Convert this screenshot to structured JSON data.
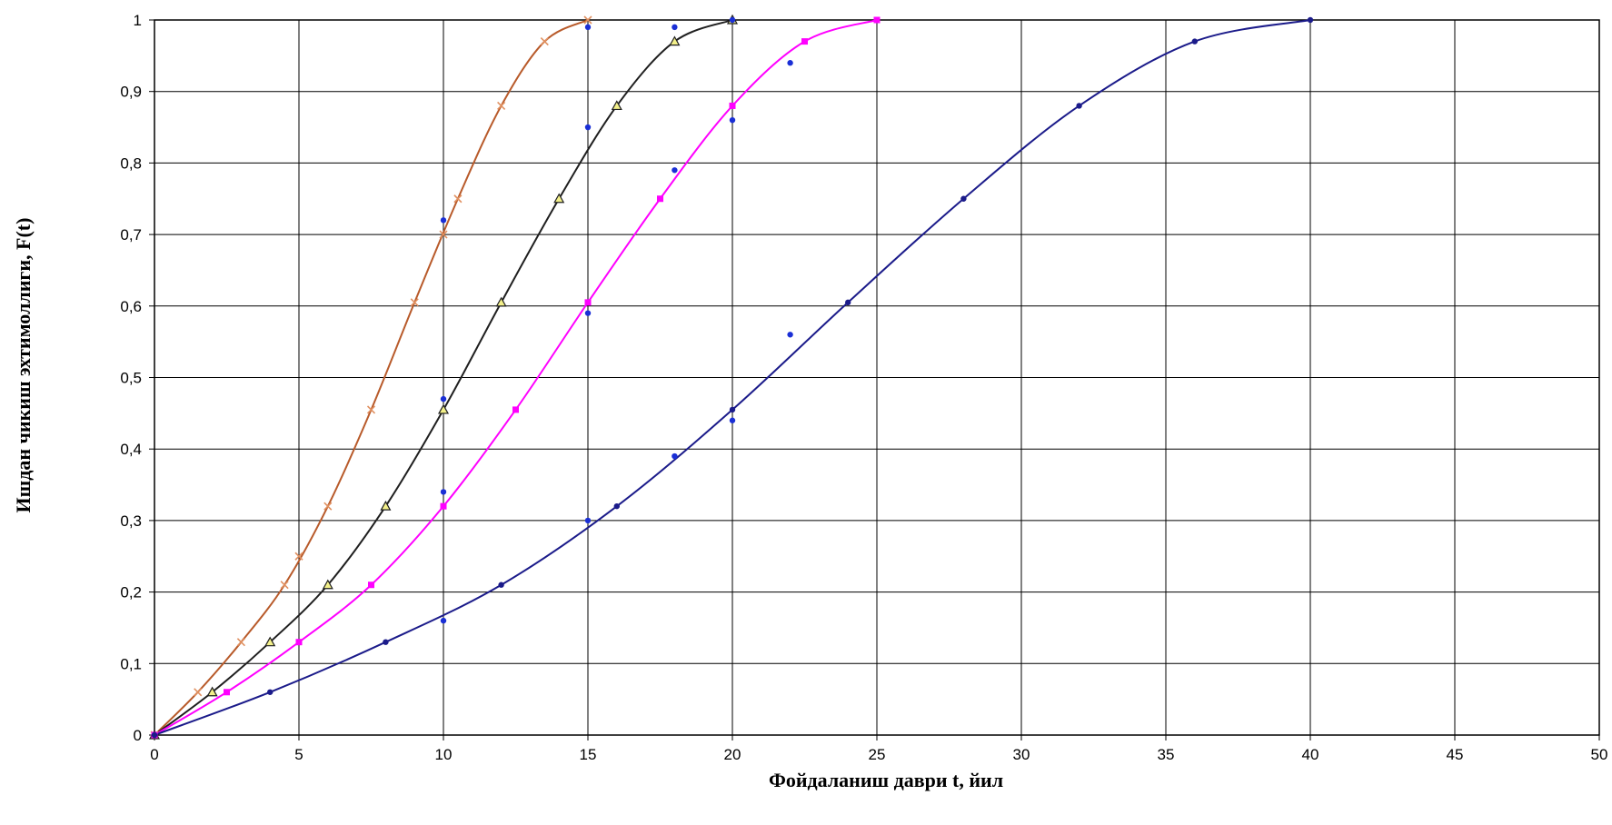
{
  "chart_data": {
    "type": "scatter",
    "xlabel": "Фойдаланиш даври t, йил",
    "ylabel": "Ишдан чикиш эхтимоллиги, F(t)",
    "xlim": [
      0,
      50
    ],
    "ylim": [
      0,
      1
    ],
    "x_ticks": [
      "0",
      "5",
      "10",
      "15",
      "20",
      "25",
      "30",
      "35",
      "40",
      "45",
      "50"
    ],
    "y_ticks": [
      "0",
      "0,1",
      "0,2",
      "0,3",
      "0,4",
      "0,5",
      "0,6",
      "0,7",
      "0,8",
      "0,9",
      "1"
    ],
    "grid": true,
    "legend": "none",
    "series": [
      {
        "color": "#b85a2a",
        "marker": "x",
        "points": [
          [
            0,
            0
          ],
          [
            1.5,
            0.06
          ],
          [
            3,
            0.13
          ],
          [
            4.5,
            0.21
          ],
          [
            5,
            0.25
          ],
          [
            6,
            0.32
          ],
          [
            7.5,
            0.455
          ],
          [
            9,
            0.605
          ],
          [
            10,
            0.7
          ],
          [
            10.5,
            0.75
          ],
          [
            12,
            0.88
          ],
          [
            13.5,
            0.97
          ],
          [
            15,
            1.0
          ]
        ],
        "curve": [
          [
            0,
            0
          ],
          [
            1.5,
            0.06
          ],
          [
            3,
            0.13
          ],
          [
            4.5,
            0.21
          ],
          [
            6,
            0.32
          ],
          [
            7.5,
            0.455
          ],
          [
            9,
            0.605
          ],
          [
            10.5,
            0.75
          ],
          [
            12,
            0.88
          ],
          [
            13.5,
            0.97
          ],
          [
            15,
            1.0
          ]
        ]
      },
      {
        "color": "#1f1f1f",
        "marker": "triangle",
        "points": [
          [
            0,
            0
          ],
          [
            2,
            0.06
          ],
          [
            4,
            0.13
          ],
          [
            6,
            0.21
          ],
          [
            8,
            0.32
          ],
          [
            10,
            0.455
          ],
          [
            12,
            0.605
          ],
          [
            14,
            0.75
          ],
          [
            16,
            0.88
          ],
          [
            18,
            0.97
          ],
          [
            20,
            1.0
          ]
        ],
        "curve": [
          [
            0,
            0
          ],
          [
            2,
            0.06
          ],
          [
            4,
            0.13
          ],
          [
            6,
            0.21
          ],
          [
            8,
            0.32
          ],
          [
            10,
            0.455
          ],
          [
            12,
            0.605
          ],
          [
            14,
            0.75
          ],
          [
            16,
            0.88
          ],
          [
            18,
            0.97
          ],
          [
            20,
            1.0
          ]
        ]
      },
      {
        "color": "#ff00ff",
        "marker": "square",
        "points": [
          [
            0,
            0
          ],
          [
            2.5,
            0.06
          ],
          [
            5,
            0.13
          ],
          [
            7.5,
            0.21
          ],
          [
            10,
            0.32
          ],
          [
            12.5,
            0.455
          ],
          [
            15,
            0.605
          ],
          [
            17.5,
            0.75
          ],
          [
            20,
            0.88
          ],
          [
            22.5,
            0.97
          ],
          [
            25,
            1.0
          ]
        ],
        "curve": [
          [
            0,
            0
          ],
          [
            2.5,
            0.06
          ],
          [
            5,
            0.13
          ],
          [
            7.5,
            0.21
          ],
          [
            10,
            0.32
          ],
          [
            12.5,
            0.455
          ],
          [
            15,
            0.605
          ],
          [
            17.5,
            0.75
          ],
          [
            20,
            0.88
          ],
          [
            22.5,
            0.97
          ],
          [
            25,
            1.0
          ]
        ]
      },
      {
        "color": "#1b1b8a",
        "marker": "dot",
        "points": [
          [
            0,
            0
          ],
          [
            4,
            0.06
          ],
          [
            8,
            0.13
          ],
          [
            12,
            0.21
          ],
          [
            16,
            0.32
          ],
          [
            20,
            0.455
          ],
          [
            24,
            0.605
          ],
          [
            28,
            0.75
          ],
          [
            32,
            0.88
          ],
          [
            36,
            0.97
          ],
          [
            40,
            1.0
          ]
        ],
        "curve": [
          [
            0,
            0
          ],
          [
            4,
            0.06
          ],
          [
            8,
            0.13
          ],
          [
            12,
            0.21
          ],
          [
            16,
            0.32
          ],
          [
            20,
            0.455
          ],
          [
            24,
            0.605
          ],
          [
            28,
            0.75
          ],
          [
            32,
            0.88
          ],
          [
            36,
            0.97
          ],
          [
            40,
            1.0
          ]
        ]
      },
      {
        "color": "#1a2fd6",
        "marker": "dot",
        "points": [
          [
            10,
            0.72
          ],
          [
            10,
            0.47
          ],
          [
            10,
            0.34
          ],
          [
            10,
            0.16
          ],
          [
            15,
            0.99
          ],
          [
            15,
            0.85
          ],
          [
            15,
            0.59
          ],
          [
            15,
            0.3
          ],
          [
            18,
            0.99
          ],
          [
            18,
            0.79
          ],
          [
            18,
            0.39
          ],
          [
            20,
            1.0
          ],
          [
            20,
            0.86
          ],
          [
            20,
            0.44
          ],
          [
            22,
            0.94
          ],
          [
            22,
            0.56
          ]
        ]
      }
    ]
  }
}
